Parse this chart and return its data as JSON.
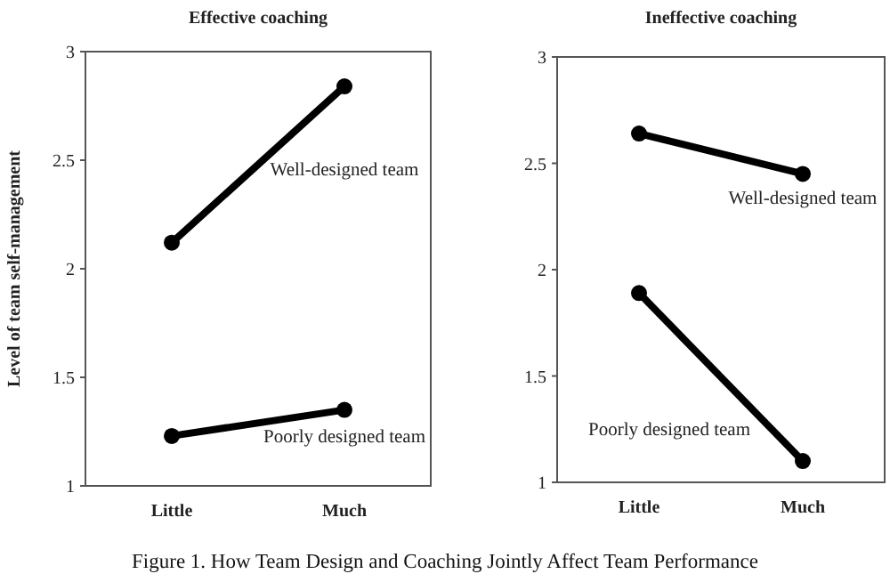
{
  "chart_data": [
    {
      "type": "line",
      "title": "Effective coaching",
      "ylabel": "Level of team self-management",
      "categories": [
        "Little",
        "Much"
      ],
      "series": [
        {
          "name": "Well-designed team",
          "color": "#000000",
          "values": [
            2.12,
            2.84
          ]
        },
        {
          "name": "Poorly designed team",
          "color": "#000000",
          "values": [
            1.23,
            1.35
          ]
        }
      ],
      "ylim": [
        1,
        3
      ],
      "yticks": [
        1,
        1.5,
        2,
        2.5,
        3
      ],
      "marker": "circle",
      "annotations": [
        "Figure 1. How Team Design and Coaching Jointly Affect Team Performance"
      ]
    },
    {
      "type": "line",
      "title": "Ineffective coaching",
      "categories": [
        "Little",
        "Much"
      ],
      "series": [
        {
          "name": "Well-designed team",
          "color": "#000000",
          "values": [
            2.64,
            2.45
          ]
        },
        {
          "name": "Poorly designed team",
          "color": "#000000",
          "values": [
            1.89,
            1.1
          ]
        }
      ],
      "ylim": [
        1,
        3
      ],
      "yticks": [
        1,
        1.5,
        2,
        2.5,
        3
      ],
      "marker": "circle"
    }
  ]
}
